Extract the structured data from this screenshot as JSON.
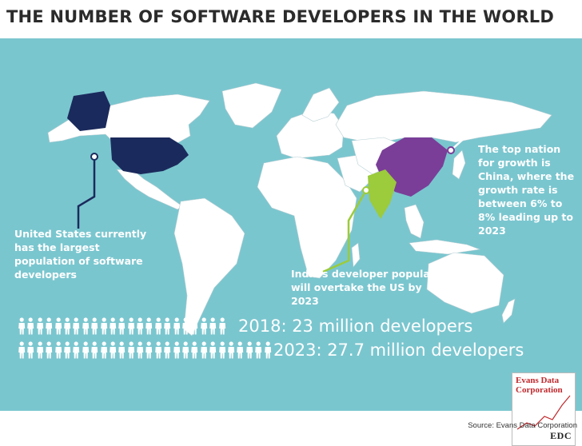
{
  "title": "THE NUMBER OF SOFTWARE DEVELOPERS IN THE WORLD",
  "colors": {
    "ocean": "#7ac6cf",
    "land": "#ffffff",
    "usa": "#1b2a5c",
    "china": "#7a3e98",
    "india": "#9ccb3b"
  },
  "callouts": {
    "usa": "United States currently has the largest population of software developers",
    "india": "India's developer population will overtake the US by 2023",
    "china": "The top nation for growth is China, where the growth rate is between 6% to 8% leading up to 2023"
  },
  "stats": [
    {
      "label": "2018: 23 million developers",
      "icon_count": 23
    },
    {
      "label": "2023: 27.7 million developers",
      "icon_count": 28
    }
  ],
  "logo": {
    "text": "Evans Data\nCorporation",
    "abbr": "EDC"
  },
  "source": "Source: Evans Data Corporation"
}
